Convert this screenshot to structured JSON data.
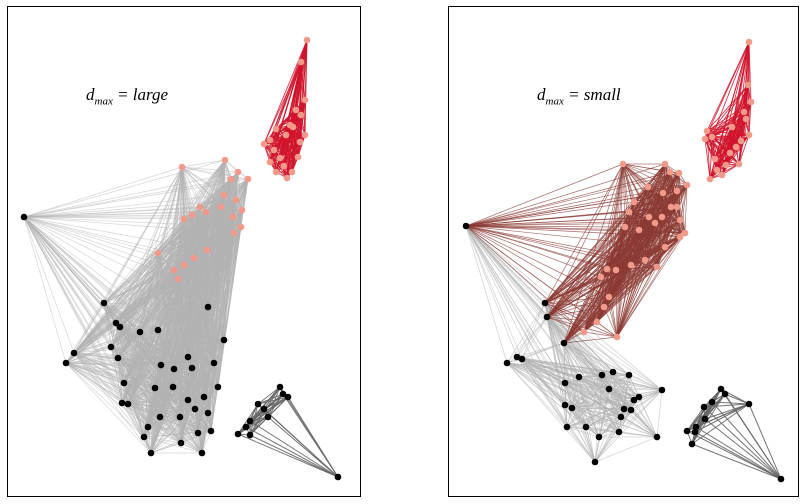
{
  "panels": [
    {
      "id": "left",
      "label": {
        "base": "d",
        "sub": "max",
        "rest": " = large"
      },
      "colors": {
        "red_edges": "#d0142c",
        "cross_edges": "#b3b3b3",
        "gray_edges": "#b3b3b3",
        "dark_edges": "#666666"
      }
    },
    {
      "id": "right",
      "label": {
        "base": "d",
        "sub": "max",
        "rest": " = small"
      },
      "colors": {
        "red_edges": "#d0142c",
        "cross_edges": "#8b3a33",
        "gray_edges": "#b3b3b3",
        "dark_edges": "#666666"
      }
    }
  ],
  "node_colors": {
    "red_cluster": "#f29a8a",
    "salmon_cluster": "#f29a8a",
    "black_cluster": "#000000"
  }
}
